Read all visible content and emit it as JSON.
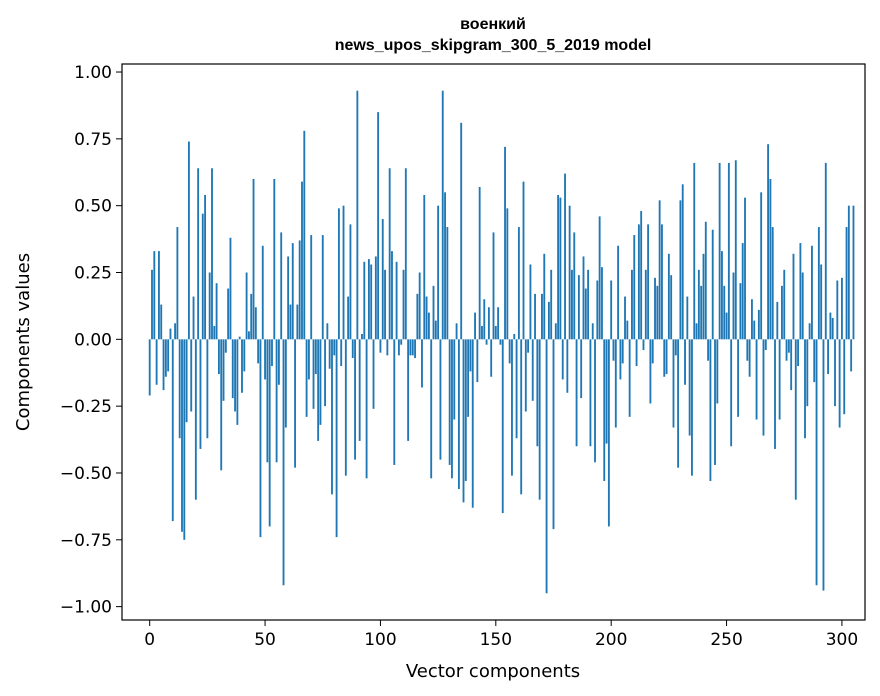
{
  "chart_data": {
    "type": "bar",
    "title": "военкий",
    "subtitle": "news_upos_skipgram_300_5_2019 model",
    "xlabel": "Vector components",
    "ylabel": "Components values",
    "xlim": [
      -12,
      310
    ],
    "ylim": [
      -1.05,
      1.03
    ],
    "xticks": [
      0,
      50,
      100,
      150,
      200,
      250,
      300
    ],
    "xtick_labels": [
      "0",
      "50",
      "100",
      "150",
      "200",
      "250",
      "300"
    ],
    "yticks": [
      1.0,
      0.75,
      0.5,
      0.25,
      0.0,
      -0.25,
      -0.5,
      -0.75,
      -1.0
    ],
    "ytick_labels": [
      "1.00",
      "0.75",
      "0.50",
      "0.25",
      "0.00",
      "−0.25",
      "−0.50",
      "−0.75",
      "−1.00"
    ],
    "bar_color": "#1f77b4",
    "values": [
      -0.21,
      0.26,
      0.33,
      -0.17,
      0.33,
      0.13,
      -0.19,
      -0.14,
      -0.12,
      0.04,
      -0.68,
      0.06,
      0.42,
      -0.37,
      -0.72,
      -0.75,
      -0.31,
      0.74,
      -0.27,
      0.16,
      -0.6,
      0.64,
      -0.41,
      0.47,
      0.54,
      -0.37,
      0.25,
      0.64,
      0.05,
      0.21,
      -0.13,
      -0.49,
      -0.23,
      -0.05,
      0.19,
      0.38,
      -0.22,
      -0.27,
      -0.32,
      0.01,
      -0.2,
      -0.12,
      0.25,
      0.03,
      0.17,
      0.6,
      0.12,
      -0.09,
      -0.74,
      0.35,
      -0.15,
      -0.46,
      -0.7,
      -0.1,
      0.6,
      -0.46,
      -0.17,
      0.4,
      -0.92,
      -0.33,
      0.31,
      0.13,
      0.36,
      -0.48,
      0.13,
      0.37,
      0.59,
      0.78,
      -0.29,
      -0.15,
      0.39,
      -0.26,
      -0.13,
      -0.38,
      -0.32,
      0.39,
      -0.25,
      0.06,
      -0.11,
      -0.58,
      -0.06,
      -0.74,
      0.49,
      -0.1,
      0.5,
      -0.51,
      0.16,
      0.43,
      -0.07,
      -0.45,
      0.93,
      -0.38,
      0.02,
      0.29,
      -0.52,
      0.3,
      0.28,
      -0.26,
      0.31,
      0.85,
      -0.05,
      0.45,
      0.26,
      -0.06,
      0.64,
      0.33,
      -0.47,
      0.29,
      -0.06,
      -0.02,
      0.26,
      0.64,
      -0.38,
      -0.06,
      -0.06,
      -0.07,
      0.17,
      0.25,
      -0.18,
      0.54,
      0.16,
      0.1,
      -0.52,
      0.2,
      0.07,
      0.5,
      -0.45,
      0.93,
      0.55,
      0.42,
      -0.47,
      -0.52,
      -0.3,
      0.06,
      -0.56,
      0.81,
      -0.61,
      -0.53,
      -0.29,
      -0.12,
      -0.63,
      0.1,
      -0.16,
      0.57,
      0.05,
      0.15,
      -0.02,
      0.12,
      -0.14,
      0.4,
      0.05,
      0.12,
      -0.02,
      -0.65,
      0.72,
      0.49,
      -0.09,
      -0.51,
      0.02,
      -0.37,
      0.42,
      -0.58,
      0.59,
      -0.27,
      -0.05,
      0.28,
      -0.23,
      0.17,
      -0.4,
      -0.6,
      0.17,
      0.32,
      -0.95,
      0.14,
      0.26,
      -0.71,
      0.06,
      0.54,
      0.53,
      -0.15,
      0.62,
      -0.2,
      0.5,
      0.26,
      0.4,
      -0.4,
      0.24,
      -0.22,
      0.31,
      0.19,
      0.26,
      -0.4,
      0.06,
      -0.46,
      0.22,
      0.46,
      0.27,
      -0.53,
      -0.39,
      -0.7,
      0.22,
      -0.08,
      -0.33,
      0.35,
      -0.15,
      -0.09,
      0.16,
      0.07,
      -0.29,
      0.26,
      0.39,
      -0.1,
      0.43,
      0.48,
      -0.04,
      0.26,
      0.43,
      -0.24,
      -0.09,
      0.23,
      0.2,
      0.52,
      0.43,
      -0.14,
      -0.13,
      0.32,
      0.24,
      -0.33,
      -0.06,
      -0.48,
      0.52,
      0.58,
      -0.17,
      0.16,
      -0.36,
      -0.51,
      0.66,
      0.06,
      0.26,
      0.2,
      0.32,
      0.44,
      -0.08,
      -0.53,
      0.41,
      -0.47,
      -0.24,
      0.66,
      0.33,
      0.2,
      0.1,
      0.66,
      -0.4,
      0.25,
      0.67,
      -0.29,
      0.21,
      0.36,
      0.53,
      -0.08,
      -0.14,
      0.15,
      0.07,
      -0.3,
      0.11,
      0.55,
      -0.36,
      -0.04,
      0.73,
      0.6,
      0.42,
      -0.41,
      0.14,
      -0.3,
      0.2,
      0.26,
      -0.08,
      -0.05,
      -0.19,
      0.32,
      -0.6,
      -0.1,
      0.36,
      0.25,
      -0.37,
      -0.25,
      0.06,
      0.35,
      -0.16,
      -0.92,
      0.42,
      0.28,
      -0.94,
      0.66,
      -0.13,
      0.1,
      0.08,
      -0.25,
      0.22,
      -0.33,
      0.23,
      -0.28,
      0.42,
      0.5,
      -0.12,
      0.5
    ]
  }
}
